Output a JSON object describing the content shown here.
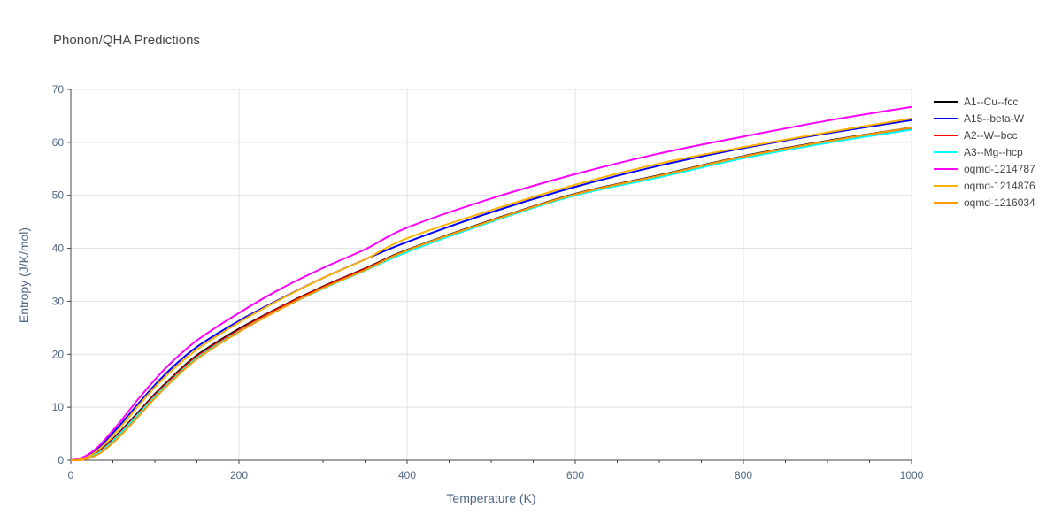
{
  "chart_data": {
    "type": "line",
    "title": "Phonon/QHA Predictions",
    "xlabel": "Temperature (K)",
    "ylabel": "Entropy (J/K/mol)",
    "xlim": [
      0,
      1000
    ],
    "ylim": [
      0,
      70
    ],
    "xticks": [
      0,
      200,
      400,
      600,
      800,
      1000
    ],
    "yticks": [
      0,
      10,
      20,
      30,
      40,
      50,
      60,
      70
    ],
    "grid": true,
    "legend_position": "top-right",
    "x": [
      0,
      10,
      20,
      30,
      40,
      60,
      80,
      100,
      120,
      150,
      200,
      250,
      300,
      350,
      400,
      500,
      600,
      700,
      800,
      900,
      1000
    ],
    "series": [
      {
        "name": "A1--Cu--fcc",
        "color": "#000000",
        "values": [
          0,
          0.1,
          0.5,
          1.3,
          2.5,
          5.6,
          9.0,
          12.5,
          15.6,
          19.8,
          24.8,
          29.0,
          32.8,
          36.2,
          39.7,
          45.3,
          50.3,
          53.8,
          57.4,
          60.3,
          62.8
        ]
      },
      {
        "name": "A15--beta-W",
        "color": "#0000ff",
        "values": [
          0,
          0.2,
          0.8,
          1.9,
          3.4,
          6.9,
          10.6,
          14.2,
          17.4,
          21.4,
          26.3,
          30.5,
          34.4,
          37.9,
          41.2,
          46.8,
          51.6,
          55.6,
          58.9,
          61.7,
          64.2
        ]
      },
      {
        "name": "A2--W--bcc",
        "color": "#ff0000",
        "values": [
          0,
          0.1,
          0.5,
          1.2,
          2.4,
          5.4,
          8.8,
          12.3,
          15.4,
          19.6,
          24.6,
          28.9,
          32.7,
          36.1,
          39.6,
          45.2,
          50.2,
          53.7,
          57.3,
          60.2,
          62.7
        ]
      },
      {
        "name": "A3--Mg--hcp",
        "color": "#00ffff",
        "values": [
          0,
          0.1,
          0.4,
          1.1,
          2.2,
          5.2,
          8.6,
          12.0,
          15.1,
          19.3,
          24.3,
          28.6,
          32.4,
          35.8,
          39.3,
          45.0,
          50.0,
          53.4,
          57.0,
          59.9,
          62.4
        ]
      },
      {
        "name": "oqmd-1214787",
        "color": "#ff00ff",
        "values": [
          0,
          0.3,
          1.0,
          2.2,
          3.8,
          7.5,
          11.5,
          15.2,
          18.5,
          22.6,
          27.8,
          32.4,
          36.3,
          39.8,
          43.9,
          49.4,
          54.0,
          57.9,
          61.1,
          64.1,
          66.7
        ]
      },
      {
        "name": "oqmd-1214876",
        "color": "#ffb300",
        "values": [
          0,
          0.1,
          0.6,
          1.6,
          3.0,
          6.4,
          10.2,
          13.8,
          16.9,
          20.9,
          26.0,
          30.4,
          34.4,
          37.9,
          41.9,
          47.2,
          52.0,
          56.0,
          59.1,
          61.9,
          64.5
        ]
      },
      {
        "name": "oqmd-1216034",
        "color": "#ff9900",
        "values": [
          0,
          0.0,
          0.3,
          0.9,
          1.9,
          4.8,
          8.2,
          11.7,
          14.9,
          19.1,
          24.2,
          28.6,
          32.5,
          35.9,
          39.6,
          45.2,
          50.2,
          53.7,
          57.3,
          60.2,
          62.8
        ]
      }
    ]
  }
}
